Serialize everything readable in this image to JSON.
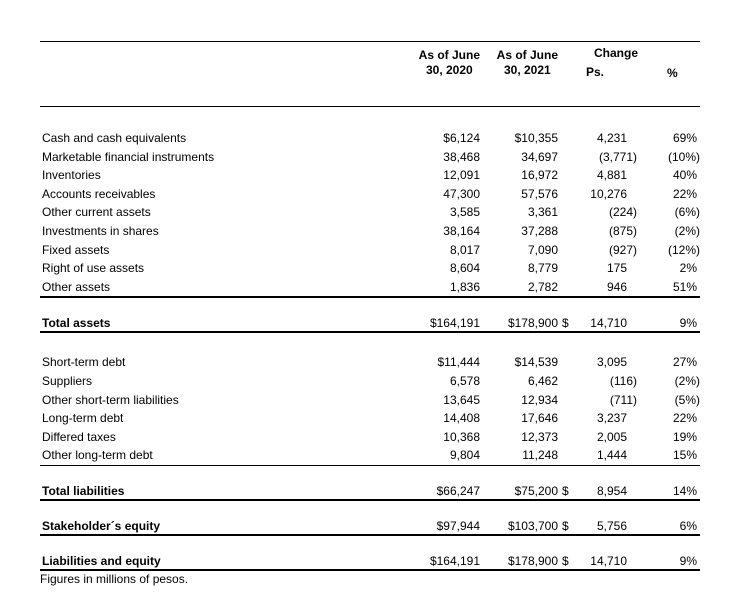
{
  "colors": {
    "background": "#ffffff",
    "text": "#000000",
    "rule": "#000000"
  },
  "header": {
    "col_2020_line1": "As of June",
    "col_2020_line2": "30, 2020",
    "col_2021_line1": "As of June",
    "col_2021_line2": "30, 2021",
    "change_label": "Change",
    "ps_label": "Ps.",
    "pct_label": "%"
  },
  "table": {
    "blocks": [
      {
        "type": "rows",
        "group": "assets",
        "rule": "thick",
        "rows": [
          {
            "label": "Cash and cash equivalents",
            "y2020": "$6,124",
            "y2021": "$10,355",
            "change_ps": "4,231",
            "change_pct": "69%"
          },
          {
            "label": "Marketable financial instruments",
            "y2020": "38,468",
            "y2021": "34,697",
            "change_ps": "(3,771)",
            "change_pct": "(10%)"
          },
          {
            "label": "Inventories",
            "y2020": "12,091",
            "y2021": "16,972",
            "change_ps": "4,881",
            "change_pct": "40%"
          },
          {
            "label": "Accounts receivables",
            "y2020": "47,300",
            "y2021": "57,576",
            "change_ps": "10,276",
            "change_pct": "22%"
          },
          {
            "label": "Other current assets",
            "y2020": "3,585",
            "y2021": "3,361",
            "change_ps": "(224)",
            "change_pct": "(6%)"
          },
          {
            "label": "Investments in shares",
            "y2020": "38,164",
            "y2021": "37,288",
            "change_ps": "(875)",
            "change_pct": "(2%)"
          },
          {
            "label": "Fixed assets",
            "y2020": "8,017",
            "y2021": "7,090",
            "change_ps": "(927)",
            "change_pct": "(12%)"
          },
          {
            "label": "Right of use assets",
            "y2020": "8,604",
            "y2021": "8,779",
            "change_ps": "175",
            "change_pct": "2%"
          },
          {
            "label": "Other assets",
            "y2020": "1,836",
            "y2021": "2,782",
            "change_ps": "946",
            "change_pct": "51%"
          }
        ]
      },
      {
        "type": "total",
        "label": "Total assets",
        "y2020": "$164,191",
        "y2021": "$178,900",
        "ps_currency": "$",
        "change_ps": "14,710",
        "change_pct": "9%"
      },
      {
        "type": "rows",
        "group": "liabilities",
        "rule": "thin",
        "rows": [
          {
            "label": "Short-term debt",
            "y2020": "$11,444",
            "y2021": "$14,539",
            "change_ps": "3,095",
            "change_pct": "27%"
          },
          {
            "label": "Suppliers",
            "y2020": "6,578",
            "y2021": "6,462",
            "change_ps": "(116)",
            "change_pct": "(2%)"
          },
          {
            "label": "Other short-term liabilities",
            "y2020": "13,645",
            "y2021": "12,934",
            "change_ps": "(711)",
            "change_pct": "(5%)"
          },
          {
            "label": "Long-term debt",
            "y2020": "14,408",
            "y2021": "17,646",
            "change_ps": "3,237",
            "change_pct": "22%"
          },
          {
            "label": "Differed taxes",
            "y2020": "10,368",
            "y2021": "12,373",
            "change_ps": "2,005",
            "change_pct": "19%"
          },
          {
            "label": "Other long-term debt",
            "y2020": "9,804",
            "y2021": "11,248",
            "change_ps": "1,444",
            "change_pct": "15%"
          }
        ]
      },
      {
        "type": "total",
        "label": "Total liabilities",
        "y2020": "$66,247",
        "y2021": "$75,200",
        "ps_currency": "$",
        "change_ps": "8,954",
        "change_pct": "14%"
      },
      {
        "type": "total",
        "label": "Stakeholder´s equity",
        "y2020": "$97,944",
        "y2021": "$103,700",
        "ps_currency": "$",
        "change_ps": "5,756",
        "change_pct": "6%"
      },
      {
        "type": "total",
        "label": "Liabilities and equity",
        "y2020": "$164,191",
        "y2021": "$178,900",
        "ps_currency": "$",
        "change_ps": "14,710",
        "change_pct": "9%"
      }
    ],
    "footnote": "Figures in millions of pesos."
  }
}
